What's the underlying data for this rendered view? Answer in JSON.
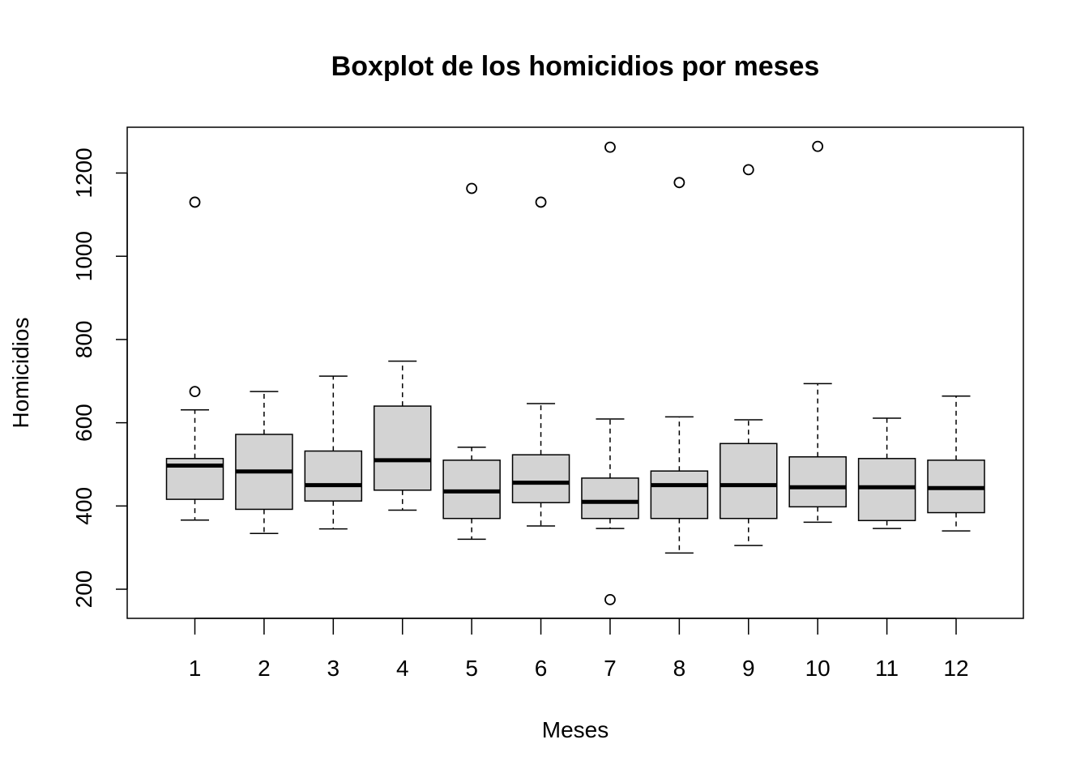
{
  "chart_data": {
    "type": "boxplot",
    "title": "Boxplot de los homicidios por meses",
    "xlabel": "Meses",
    "ylabel": "Homicidios",
    "ylim": [
      130,
      1310
    ],
    "yticks": [
      200,
      400,
      600,
      800,
      1000,
      1200
    ],
    "categories": [
      "1",
      "2",
      "3",
      "4",
      "5",
      "6",
      "7",
      "8",
      "9",
      "10",
      "11",
      "12"
    ],
    "boxes": [
      {
        "category": "1",
        "whisker_low": 366,
        "q1": 416,
        "median": 497,
        "q3": 514,
        "whisker_high": 631,
        "outliers": [
          675,
          1130
        ]
      },
      {
        "category": "2",
        "whisker_low": 334,
        "q1": 392,
        "median": 483,
        "q3": 572,
        "whisker_high": 675,
        "outliers": []
      },
      {
        "category": "3",
        "whisker_low": 345,
        "q1": 412,
        "median": 450,
        "q3": 532,
        "whisker_high": 712,
        "outliers": []
      },
      {
        "category": "4",
        "whisker_low": 390,
        "q1": 438,
        "median": 510,
        "q3": 640,
        "whisker_high": 748,
        "outliers": []
      },
      {
        "category": "5",
        "whisker_low": 320,
        "q1": 370,
        "median": 435,
        "q3": 510,
        "whisker_high": 541,
        "outliers": [
          1163
        ]
      },
      {
        "category": "6",
        "whisker_low": 352,
        "q1": 408,
        "median": 456,
        "q3": 523,
        "whisker_high": 646,
        "outliers": [
          1130
        ]
      },
      {
        "category": "7",
        "whisker_low": 346,
        "q1": 370,
        "median": 410,
        "q3": 467,
        "whisker_high": 609,
        "outliers": [
          175,
          1262
        ]
      },
      {
        "category": "8",
        "whisker_low": 287,
        "q1": 370,
        "median": 450,
        "q3": 484,
        "whisker_high": 614,
        "outliers": [
          1177
        ]
      },
      {
        "category": "9",
        "whisker_low": 305,
        "q1": 370,
        "median": 450,
        "q3": 550,
        "whisker_high": 607,
        "outliers": [
          1208
        ]
      },
      {
        "category": "10",
        "whisker_low": 361,
        "q1": 398,
        "median": 445,
        "q3": 518,
        "whisker_high": 694,
        "outliers": [
          1264
        ]
      },
      {
        "category": "11",
        "whisker_low": 346,
        "q1": 365,
        "median": 445,
        "q3": 514,
        "whisker_high": 611,
        "outliers": []
      },
      {
        "category": "12",
        "whisker_low": 340,
        "q1": 384,
        "median": 443,
        "q3": 510,
        "whisker_high": 664,
        "outliers": []
      }
    ],
    "colors": {
      "box_fill": "#d3d3d3",
      "stroke": "#000000"
    },
    "grid": false,
    "legend": "none"
  }
}
